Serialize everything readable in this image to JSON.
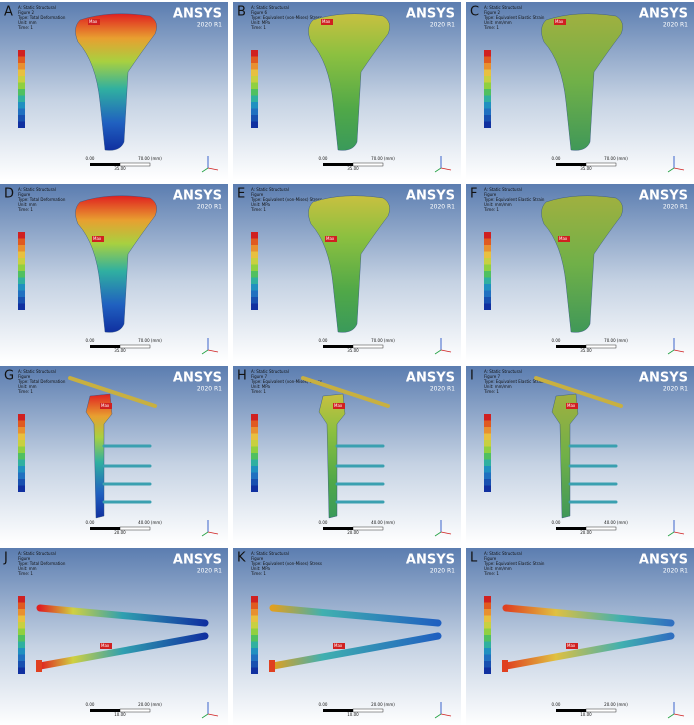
{
  "panels": [
    {
      "letter": "A",
      "kind": "bone",
      "field": "def",
      "lines": [
        "A: Static Structural",
        "Figure 2",
        "Type: Total Deformation",
        "Unit: mm",
        "Time: 1"
      ],
      "logo": "ANSYS",
      "version": "2020 R1",
      "scale": [
        "0.00",
        "35.00",
        "70.00 (mm)"
      ],
      "max": "Max"
    },
    {
      "letter": "B",
      "kind": "bone",
      "field": "stress",
      "lines": [
        "A: Static Structural",
        "Figure 6",
        "Type: Equivalent (von-Mises) Stress",
        "Unit: MPa",
        "Time: 1"
      ],
      "logo": "ANSYS",
      "version": "2020 R1",
      "scale": [
        "0.00",
        "35.00",
        "70.00 (mm)"
      ],
      "max": "Max"
    },
    {
      "letter": "C",
      "kind": "bone",
      "field": "strain",
      "lines": [
        "A: Static Structural",
        "Figure 2",
        "Type: Equivalent Elastic Strain",
        "Unit: mm/mm",
        "Time: 1"
      ],
      "logo": "ANSYS",
      "version": "2020 R1",
      "scale": [
        "0.00",
        "35.00",
        "70.00 (mm)"
      ],
      "max": "Max"
    },
    {
      "letter": "D",
      "kind": "bone",
      "field": "def",
      "lines": [
        "A: Static Structural",
        "Figure",
        "Type: Total Deformation",
        "Unit: mm",
        "Time: 1"
      ],
      "logo": "ANSYS",
      "version": "2020 R1",
      "scale": [
        "0.00",
        "35.00",
        "70.00 (mm)"
      ],
      "max": "Max"
    },
    {
      "letter": "E",
      "kind": "bone",
      "field": "stress",
      "lines": [
        "A: Static Structural",
        "Figure",
        "Type: Equivalent (von-Mises) Stress",
        "Unit: MPa",
        "Time: 1"
      ],
      "logo": "ANSYS",
      "version": "2020 R1",
      "scale": [
        "0.00",
        "35.00",
        "70.00 (mm)"
      ],
      "max": "Max"
    },
    {
      "letter": "F",
      "kind": "bone",
      "field": "strain",
      "lines": [
        "A: Static Structural",
        "Figure",
        "Type: Equivalent Elastic Strain",
        "Unit: mm/mm",
        "Time: 1"
      ],
      "logo": "ANSYS",
      "version": "2020 R1",
      "scale": [
        "0.00",
        "35.00",
        "70.00 (mm)"
      ],
      "max": "Max"
    },
    {
      "letter": "G",
      "kind": "plate",
      "field": "def",
      "lines": [
        "A: Static Structural",
        "Figure",
        "Type: Total Deformation",
        "Unit: mm",
        "Time: 1"
      ],
      "logo": "ANSYS",
      "version": "2020 R1",
      "scale": [
        "0.00",
        "20.00",
        "40.00 (mm)"
      ],
      "max": "Max"
    },
    {
      "letter": "H",
      "kind": "plate",
      "field": "stress",
      "lines": [
        "A: Static Structural",
        "Figure 7",
        "Type: Equivalent (von-Mises) Stress",
        "Unit: MPa",
        "Time: 1"
      ],
      "logo": "ANSYS",
      "version": "2020 R1",
      "scale": [
        "0.00",
        "20.00",
        "40.00 (mm)"
      ],
      "max": "Max"
    },
    {
      "letter": "I",
      "kind": "plate",
      "field": "strain",
      "lines": [
        "A: Static Structural",
        "Figure 7",
        "Type: Equivalent Elastic Strain",
        "Unit: mm/mm",
        "Time: 1"
      ],
      "logo": "ANSYS",
      "version": "2020 R1",
      "scale": [
        "0.00",
        "20.00",
        "40.00 (mm)"
      ],
      "max": "Max"
    },
    {
      "letter": "J",
      "kind": "screw",
      "field": "def",
      "lines": [
        "A: Static Structural",
        "Figure",
        "Type: Total Deformation",
        "Unit: mm",
        "Time: 1"
      ],
      "logo": "ANSYS",
      "version": "2020 R1",
      "scale": [
        "0.00",
        "10.00",
        "20.00 (mm)"
      ],
      "max": "Max"
    },
    {
      "letter": "K",
      "kind": "screw",
      "field": "stress",
      "lines": [
        "A: Static Structural",
        "Figure",
        "Type: Equivalent (von-Mises) Stress",
        "Unit: MPa",
        "Time: 1"
      ],
      "logo": "ANSYS",
      "version": "2020 R1",
      "scale": [
        "0.00",
        "10.00",
        "20.00 (mm)"
      ],
      "max": "Max"
    },
    {
      "letter": "L",
      "kind": "screw",
      "field": "strain",
      "lines": [
        "A: Static Structural",
        "Figure",
        "Type: Equivalent Elastic Strain",
        "Unit: mm/mm",
        "Time: 1"
      ],
      "logo": "ANSYS",
      "version": "2020 R1",
      "scale": [
        "0.00",
        "10.00",
        "20.00 (mm)"
      ],
      "max": "Max"
    }
  ]
}
